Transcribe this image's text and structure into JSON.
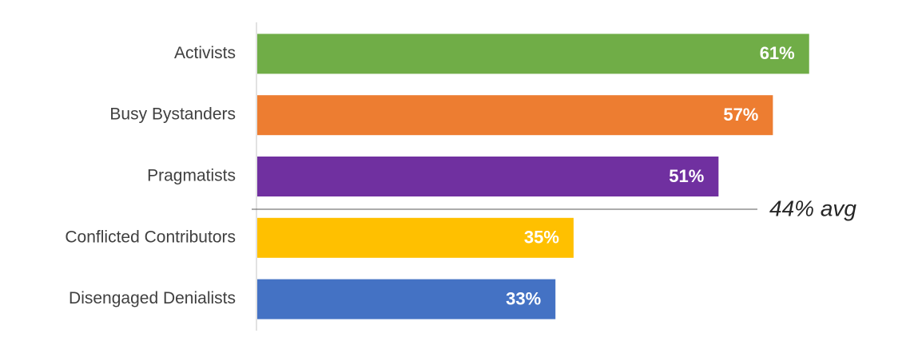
{
  "chart_data": {
    "type": "bar",
    "orientation": "horizontal",
    "categories": [
      "Activists",
      "Busy Bystanders",
      "Pragmatists",
      "Conflicted Contributors",
      "Disengaged Denialists"
    ],
    "values": [
      61,
      57,
      51,
      35,
      33
    ],
    "value_labels": [
      "61%",
      "57%",
      "51%",
      "35%",
      "33%"
    ],
    "colors": [
      "#70ad47",
      "#ed7d31",
      "#7030a0",
      "#ffc000",
      "#4472c4"
    ],
    "annotations": [
      "44% avg"
    ]
  }
}
